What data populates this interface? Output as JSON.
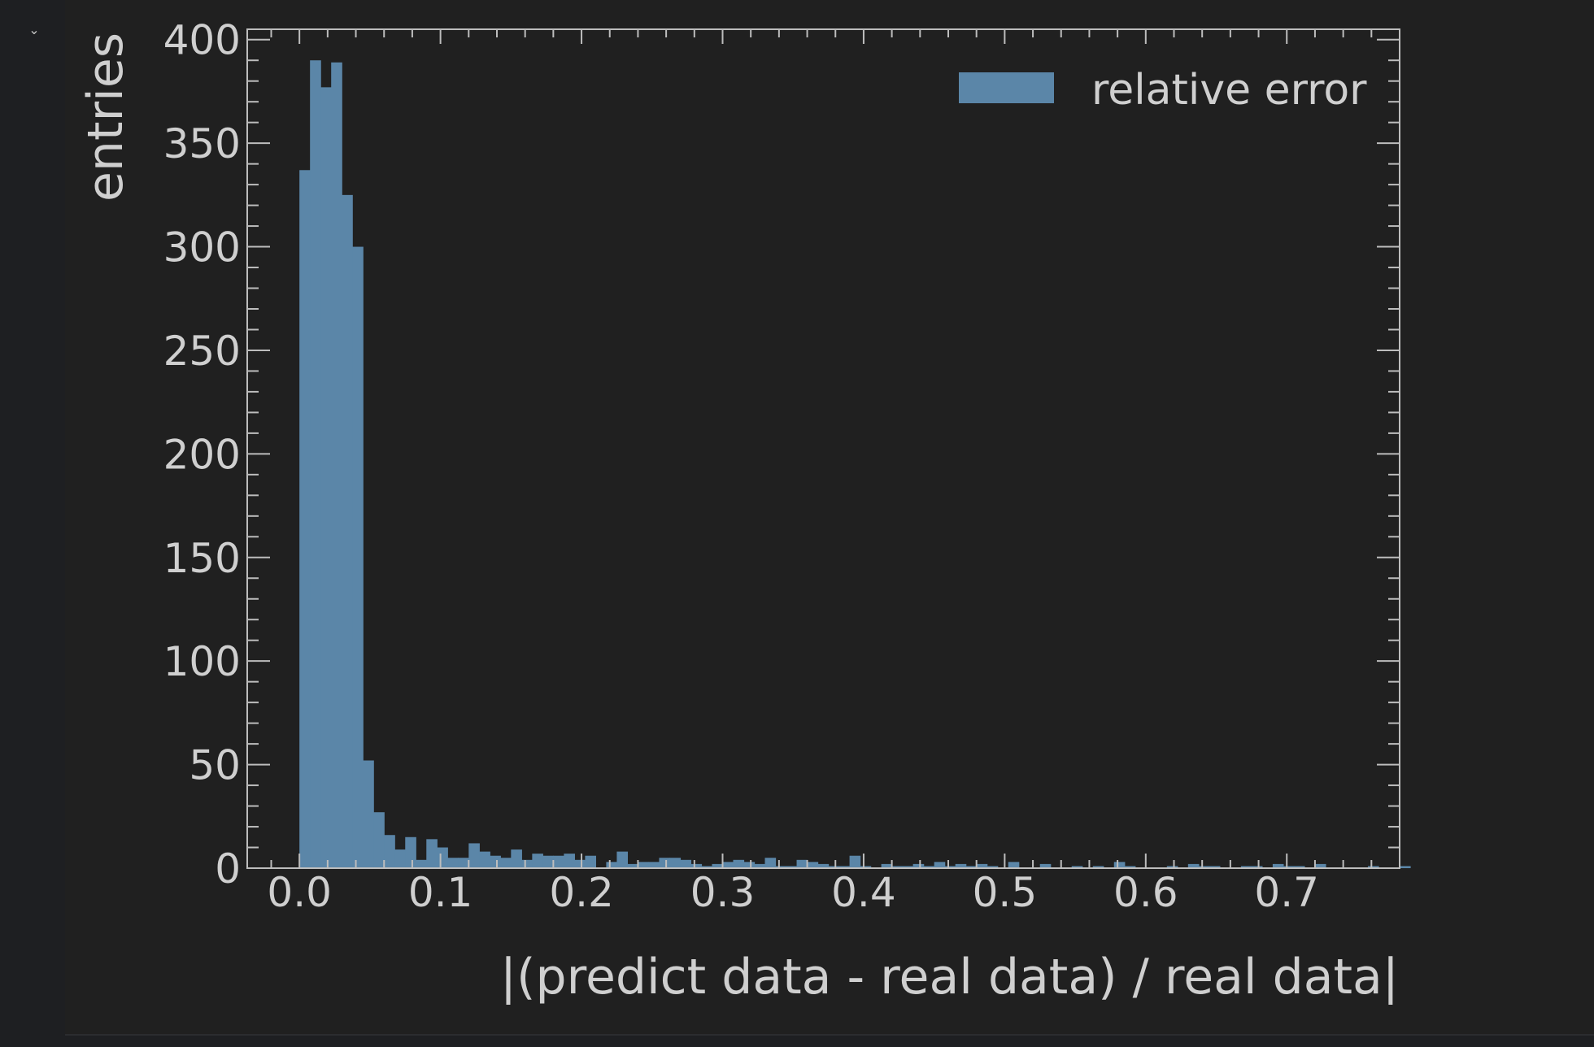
{
  "notebook": {
    "collapse_icon": "chevron-down-icon",
    "collapse_glyph": "⌄"
  },
  "colors": {
    "page_background": "#1e1f22",
    "plot_background": "#202020",
    "frame": "#bdbdbd",
    "bar": "#5b86a8",
    "text": "#cfcfcf"
  },
  "chart_data": {
    "type": "bar",
    "histogram": true,
    "xlabel": "|(predict data - real data) / real data|",
    "ylabel": "entries",
    "legend": {
      "label": "relative error",
      "position": "top-right"
    },
    "xlim": [
      -0.037,
      0.78
    ],
    "ylim": [
      0,
      405
    ],
    "xticks": [
      0.0,
      0.1,
      0.2,
      0.3,
      0.4,
      0.5,
      0.6,
      0.7
    ],
    "xtick_labels": [
      "0.0",
      "0.1",
      "0.2",
      "0.3",
      "0.4",
      "0.5",
      "0.6",
      "0.7"
    ],
    "yticks": [
      0,
      50,
      100,
      150,
      200,
      250,
      300,
      350,
      400
    ],
    "ytick_labels": [
      "0",
      "50",
      "100",
      "150",
      "200",
      "250",
      "300",
      "350",
      "400"
    ],
    "grid": false,
    "bin_start": 0.0,
    "bin_width": 0.0075,
    "counts": [
      337,
      390,
      377,
      389,
      325,
      300,
      52,
      27,
      16,
      9,
      15,
      4,
      14,
      10,
      5,
      5,
      12,
      8,
      6,
      5,
      9,
      4,
      7,
      6,
      6,
      7,
      4,
      6,
      0,
      3,
      8,
      2,
      3,
      3,
      5,
      5,
      4,
      2,
      1,
      2,
      3,
      4,
      3,
      2,
      5,
      1,
      1,
      4,
      3,
      2,
      1,
      1,
      6,
      1,
      0,
      2,
      1,
      1,
      2,
      1,
      3,
      1,
      2,
      1,
      2,
      1,
      0,
      3,
      0,
      0,
      2,
      0,
      0,
      1,
      0,
      1,
      0,
      3,
      1,
      0,
      0,
      0,
      1,
      0,
      2,
      1,
      1,
      0,
      0,
      1,
      1,
      0,
      2,
      1,
      1,
      0,
      2,
      0,
      0,
      0,
      0,
      1,
      0,
      0,
      1,
      0,
      0,
      0,
      0,
      0,
      0,
      0,
      0,
      0,
      0,
      0,
      0,
      0,
      0,
      0,
      0,
      0,
      0,
      0,
      0,
      0,
      0,
      0,
      0,
      0,
      0,
      0,
      0,
      0,
      0,
      0,
      0,
      0,
      0,
      0,
      0,
      0,
      0,
      0,
      0,
      0,
      0,
      0,
      0,
      0
    ]
  }
}
